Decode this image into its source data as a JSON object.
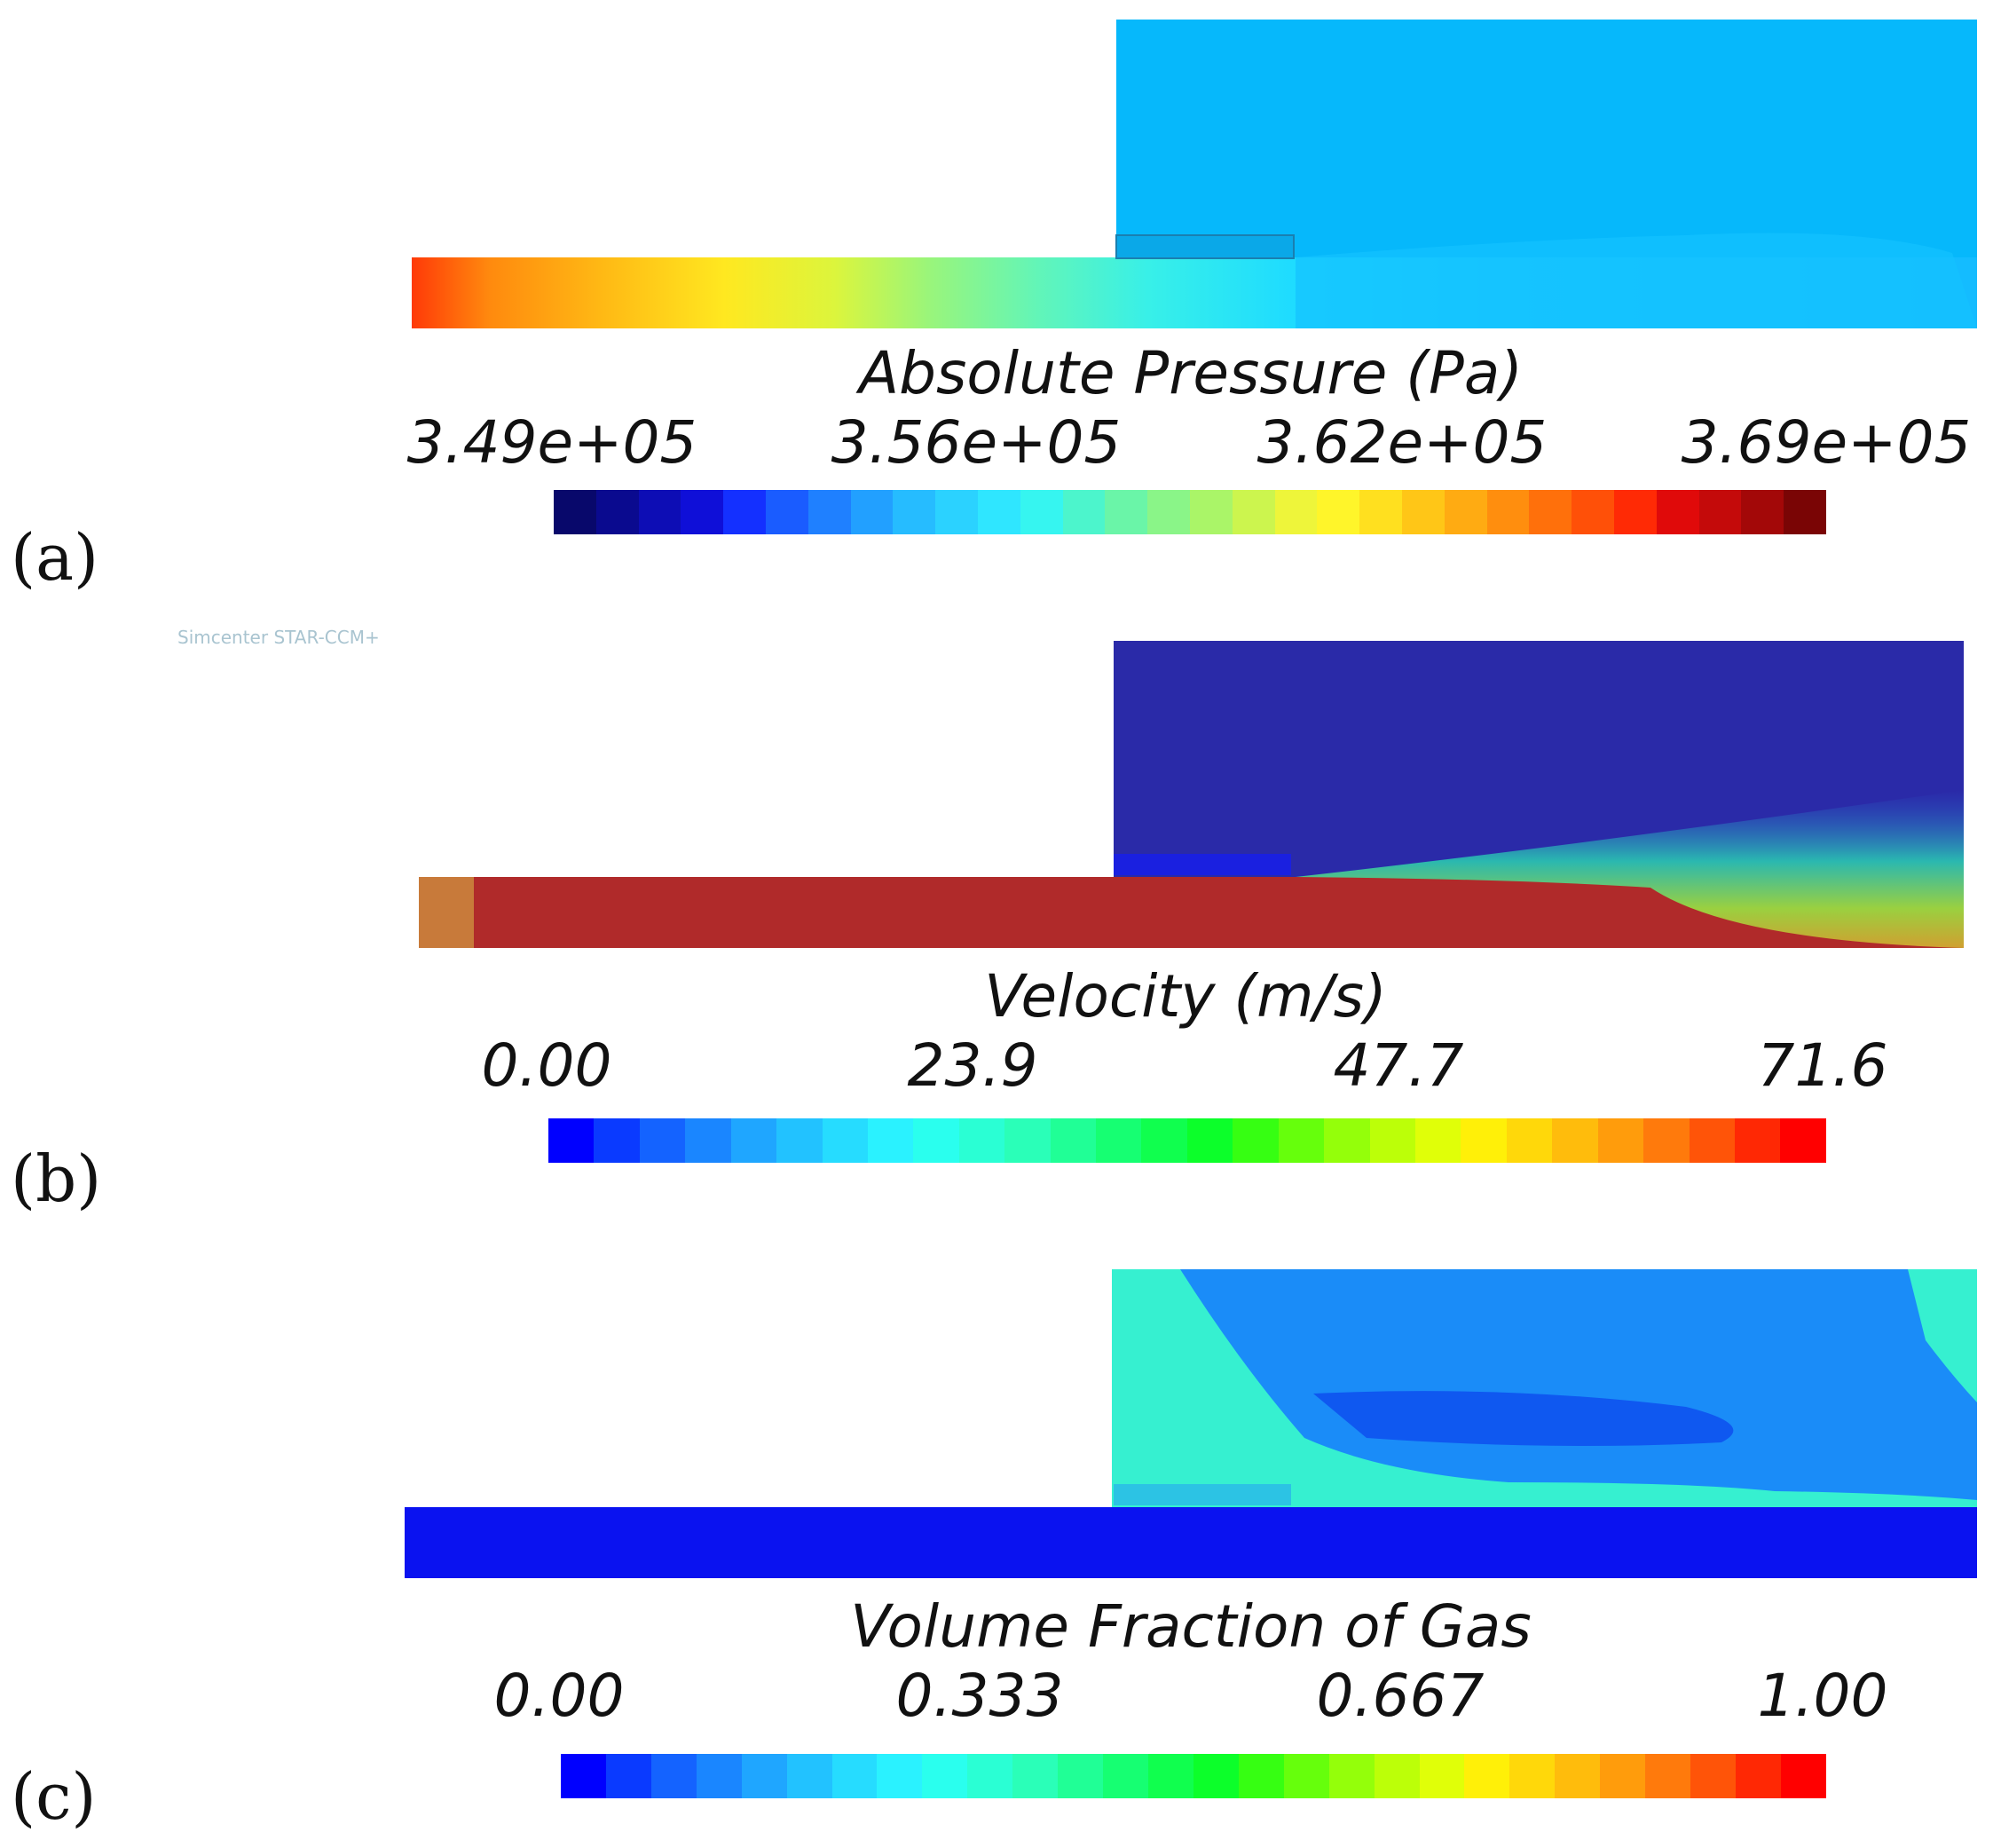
{
  "software_watermark": "Simcenter STAR-CCM+",
  "panels": [
    {
      "letter": "(a)",
      "title": "Absolute Pressure (Pa)",
      "ticks": [
        "3.49e+05",
        "3.56e+05",
        "3.62e+05",
        "3.69e+05"
      ],
      "colormap": [
        "#08086b",
        "#0a0a8f",
        "#0d0db5",
        "#0f0fd8",
        "#1430ff",
        "#1a5cff",
        "#1f80ff",
        "#22a0ff",
        "#26bcff",
        "#2bd2ff",
        "#2fe6ff",
        "#36f5f0",
        "#4cf5cc",
        "#6af5a8",
        "#8af588",
        "#aaf568",
        "#ccf54e",
        "#eef53a",
        "#fff52a",
        "#ffe01f",
        "#ffc617",
        "#ffab12",
        "#ff8e0e",
        "#ff700b",
        "#ff5008",
        "#ff2a05",
        "#e00a0a",
        "#c40a0a",
        "#a30808",
        "#7a0505"
      ]
    },
    {
      "letter": "(b)",
      "title": "Velocity (m/s)",
      "ticks": [
        "0.00",
        "23.9",
        "47.7",
        "71.6"
      ],
      "colormap": [
        "#0000ff",
        "#0a3aff",
        "#1463ff",
        "#1a86ff",
        "#1fa6ff",
        "#22c2ff",
        "#26dcff",
        "#2af2ff",
        "#2affee",
        "#2affd4",
        "#2affb8",
        "#20ff96",
        "#16ff72",
        "#10ff4e",
        "#0cff2a",
        "#36ff12",
        "#66ff0c",
        "#94ff0a",
        "#bcff08",
        "#e0ff08",
        "#fff008",
        "#ffd80a",
        "#ffbc0c",
        "#ff9c0c",
        "#ff7a0c",
        "#ff5408",
        "#ff2804",
        "#ff0000"
      ]
    },
    {
      "letter": "(c)",
      "title": "Volume Fraction of Gas",
      "ticks": [
        "0.00",
        "0.333",
        "0.667",
        "1.00"
      ],
      "colormap": [
        "#0000ff",
        "#0a3aff",
        "#1463ff",
        "#1a86ff",
        "#1fa6ff",
        "#22c2ff",
        "#26dcff",
        "#2af2ff",
        "#2affee",
        "#2affd4",
        "#2affb8",
        "#20ff96",
        "#16ff72",
        "#10ff4e",
        "#0cff2a",
        "#36ff12",
        "#66ff0c",
        "#94ff0a",
        "#bcff08",
        "#e0ff08",
        "#fff008",
        "#ffd80a",
        "#ffbc0c",
        "#ff9c0c",
        "#ff7a0c",
        "#ff5408",
        "#ff2804",
        "#ff0000"
      ]
    }
  ]
}
